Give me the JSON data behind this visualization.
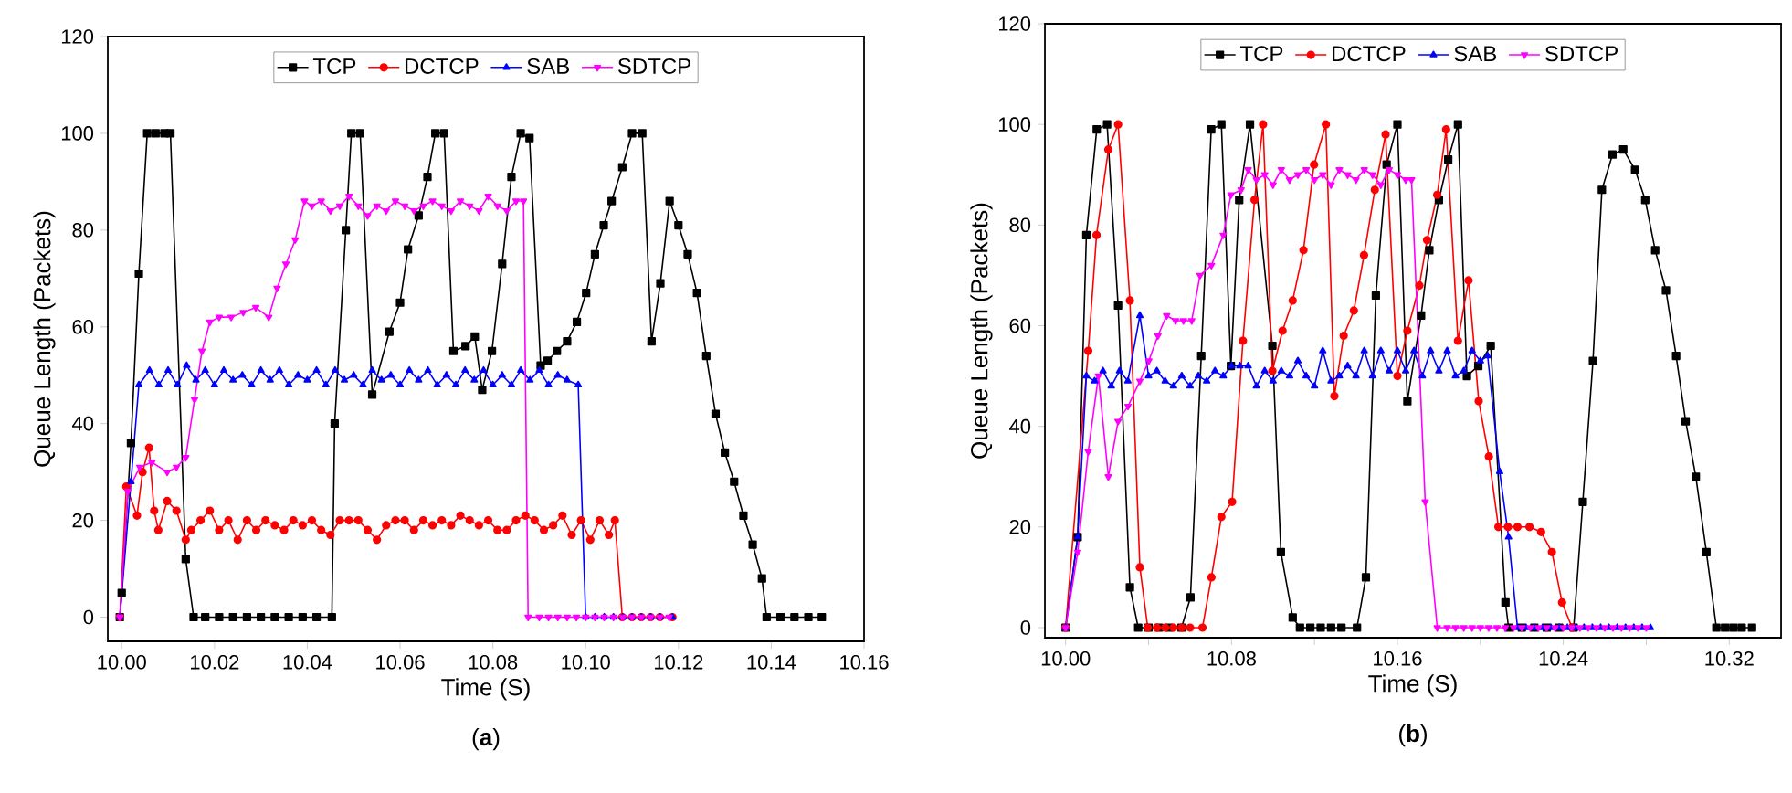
{
  "chart_data": [
    {
      "type": "line",
      "xlabel": "Time (S)",
      "ylabel": "Queue Length (Packets)",
      "annotations": [
        "(**a**)"
      ],
      "xlim": [
        9.997,
        10.16
      ],
      "ylim": [
        -5,
        120
      ],
      "xticks": [
        {
          "value": 10.0,
          "label": "10.00"
        },
        {
          "value": 10.02,
          "label": "10.02"
        },
        {
          "value": 10.04,
          "label": "10.04"
        },
        {
          "value": 10.06,
          "label": "10.06"
        },
        {
          "value": 10.08,
          "label": "10.08"
        },
        {
          "value": 10.1,
          "label": "10.10"
        },
        {
          "value": 10.12,
          "label": "10.12"
        },
        {
          "value": 10.14,
          "label": "10.14"
        },
        {
          "value": 10.16,
          "label": "10.16"
        }
      ],
      "yticks": [
        0,
        20,
        40,
        60,
        80,
        100,
        120
      ],
      "legend": "top",
      "grid": false,
      "series": [
        {
          "name": "TCP",
          "color": "#000000",
          "marker": "square",
          "x": [
            9.9996,
            10.0,
            10.002,
            10.0037,
            10.0055,
            10.0073,
            10.0092,
            10.0105,
            10.0138,
            10.0155,
            10.018,
            10.021,
            10.024,
            10.027,
            10.03,
            10.033,
            10.036,
            10.039,
            10.042,
            10.0453,
            10.0459,
            10.0483,
            10.0495,
            10.0514,
            10.054,
            10.0577,
            10.06,
            10.0617,
            10.064,
            10.0659,
            10.0676,
            10.0695,
            10.0715,
            10.0741,
            10.0761,
            10.0777,
            10.0798,
            10.082,
            10.084,
            10.086,
            10.0879,
            10.0903,
            10.0918,
            10.0938,
            10.096,
            10.0981,
            10.1001,
            10.102,
            10.1039,
            10.1056,
            10.1079,
            10.11,
            10.1122,
            10.1142,
            10.1161,
            10.1181,
            10.12,
            10.122,
            10.124,
            10.126,
            10.128,
            10.13,
            10.132,
            10.134,
            10.136,
            10.138,
            10.139,
            10.142,
            10.145,
            10.148,
            10.1509
          ],
          "values": [
            0,
            5,
            36,
            71,
            100,
            100,
            100,
            100,
            12,
            0,
            0,
            0,
            0,
            0,
            0,
            0,
            0,
            0,
            0,
            0,
            40,
            80,
            100,
            100,
            46,
            59,
            65,
            76,
            83,
            91,
            100,
            100,
            55,
            56,
            58,
            47,
            55,
            73,
            91,
            100,
            99,
            52,
            53,
            55,
            57,
            61,
            67,
            75,
            81,
            86,
            93,
            100,
            100,
            57,
            69,
            86,
            81,
            75,
            67,
            54,
            42,
            34,
            28,
            21,
            15,
            8,
            0,
            0,
            0,
            0,
            0
          ]
        },
        {
          "name": "DCTCP",
          "color": "#ff0000",
          "marker": "circle",
          "x": [
            9.9996,
            10.001,
            10.0033,
            10.0045,
            10.0059,
            10.007,
            10.0079,
            10.0098,
            10.0118,
            10.0138,
            10.015,
            10.017,
            10.019,
            10.021,
            10.023,
            10.025,
            10.027,
            10.029,
            10.031,
            10.033,
            10.035,
            10.037,
            10.039,
            10.041,
            10.043,
            10.045,
            10.047,
            10.049,
            10.051,
            10.053,
            10.055,
            10.057,
            10.059,
            10.061,
            10.063,
            10.065,
            10.067,
            10.069,
            10.071,
            10.073,
            10.075,
            10.077,
            10.079,
            10.081,
            10.083,
            10.085,
            10.087,
            10.089,
            10.091,
            10.093,
            10.095,
            10.097,
            10.099,
            10.101,
            10.103,
            10.105,
            10.1063,
            10.1079,
            10.11,
            10.112,
            10.114,
            10.116,
            10.1187
          ],
          "values": [
            0,
            27,
            21,
            30,
            35,
            22,
            18,
            24,
            22,
            16,
            18,
            20,
            22,
            18,
            20,
            16,
            20,
            18,
            20,
            19,
            18,
            20,
            19,
            20,
            18,
            17,
            20,
            20,
            20,
            18,
            16,
            19,
            20,
            20,
            18,
            20,
            19,
            20,
            19,
            21,
            20,
            19,
            20,
            18,
            18,
            20,
            21,
            20,
            18,
            19,
            21,
            17,
            20,
            16,
            20,
            17,
            20,
            0,
            0,
            0,
            0,
            0,
            0
          ]
        },
        {
          "name": "SAB",
          "color": "#0000ff",
          "marker": "triangle",
          "x": [
            9.9996,
            10.002,
            10.0037,
            10.006,
            10.008,
            10.01,
            10.012,
            10.014,
            10.016,
            10.018,
            10.02,
            10.022,
            10.024,
            10.026,
            10.028,
            10.03,
            10.032,
            10.034,
            10.036,
            10.038,
            10.04,
            10.042,
            10.044,
            10.046,
            10.048,
            10.05,
            10.052,
            10.054,
            10.056,
            10.058,
            10.06,
            10.062,
            10.064,
            10.066,
            10.068,
            10.07,
            10.072,
            10.074,
            10.076,
            10.078,
            10.08,
            10.082,
            10.084,
            10.086,
            10.088,
            10.09,
            10.092,
            10.094,
            10.096,
            10.0984,
            10.1,
            10.102,
            10.104,
            10.106,
            10.108,
            10.11,
            10.112,
            10.114,
            10.116,
            10.1187
          ],
          "values": [
            0,
            28,
            48,
            51,
            48,
            51,
            48,
            52,
            49,
            51,
            48,
            51,
            49,
            50,
            48,
            51,
            49,
            51,
            48,
            50,
            49,
            51,
            48,
            51,
            49,
            50,
            48,
            51,
            49,
            50,
            48,
            51,
            49,
            51,
            48,
            50,
            48,
            51,
            49,
            51,
            48,
            50,
            48,
            51,
            49,
            51,
            48,
            50,
            49,
            48,
            0,
            0,
            0,
            0,
            0,
            0,
            0,
            0,
            0,
            0
          ]
        },
        {
          "name": "SDTCP",
          "color": "#ff00ff",
          "marker": "triangle-down",
          "x": [
            9.9996,
            10.0013,
            10.0039,
            10.0065,
            10.0098,
            10.0118,
            10.0138,
            10.0157,
            10.0173,
            10.019,
            10.021,
            10.0236,
            10.0262,
            10.0289,
            10.0317,
            10.0335,
            10.0354,
            10.0374,
            10.0394,
            10.041,
            10.043,
            10.045,
            10.047,
            10.049,
            10.051,
            10.053,
            10.055,
            10.057,
            10.059,
            10.061,
            10.063,
            10.065,
            10.067,
            10.069,
            10.071,
            10.073,
            10.075,
            10.077,
            10.079,
            10.081,
            10.083,
            10.085,
            10.0866,
            10.0876,
            10.09,
            10.092,
            10.094,
            10.096,
            10.098,
            10.1,
            10.102,
            10.104,
            10.106,
            10.108,
            10.11,
            10.112,
            10.114,
            10.116,
            10.118
          ],
          "values": [
            0,
            26,
            31,
            32,
            30,
            31,
            33,
            45,
            55,
            61,
            62,
            62,
            63,
            64,
            62,
            68,
            73,
            78,
            86,
            85,
            86,
            84,
            85,
            87,
            85,
            83,
            85,
            84,
            86,
            85,
            84,
            85,
            86,
            85,
            84,
            86,
            85,
            84,
            87,
            85,
            84,
            86,
            86,
            0,
            0,
            0,
            0,
            0,
            0,
            0,
            0,
            0,
            0,
            0,
            0,
            0,
            0,
            0,
            0
          ]
        }
      ]
    },
    {
      "type": "line",
      "xlabel": "Time (S)",
      "ylabel": "Queue Length (Packets)",
      "annotations": [
        "(**b**)"
      ],
      "xlim": [
        9.99,
        10.345
      ],
      "ylim": [
        -2,
        120
      ],
      "xticks": [
        {
          "value": 10.0,
          "label": "10.00"
        },
        {
          "value": 10.04,
          "label": null
        },
        {
          "value": 10.08,
          "label": "10.08"
        },
        {
          "value": 10.12,
          "label": null
        },
        {
          "value": 10.16,
          "label": "10.16"
        },
        {
          "value": 10.2,
          "label": null
        },
        {
          "value": 10.24,
          "label": "10.24"
        },
        {
          "value": 10.28,
          "label": null
        },
        {
          "value": 10.32,
          "label": "10.32"
        }
      ],
      "yticks": [
        0,
        20,
        40,
        60,
        80,
        100,
        120
      ],
      "legend": "top",
      "grid": false,
      "series": [
        {
          "name": "TCP",
          "color": "#000000",
          "marker": "square",
          "x": [
            10.0,
            10.0058,
            10.01,
            10.015,
            10.02,
            10.0253,
            10.031,
            10.035,
            10.04,
            10.045,
            10.05,
            10.0559,
            10.0602,
            10.0654,
            10.0702,
            10.0751,
            10.0797,
            10.0837,
            10.0889,
            10.0997,
            10.1038,
            10.1095,
            10.113,
            10.118,
            10.123,
            10.128,
            10.133,
            10.1405,
            10.1448,
            10.1496,
            10.1548,
            10.16,
            10.1648,
            10.1714,
            10.1754,
            10.18,
            10.1845,
            10.1892,
            10.1935,
            10.199,
            10.205,
            10.2121,
            10.2136,
            10.22,
            10.226,
            10.232,
            10.238,
            10.245,
            10.2494,
            10.2543,
            10.2586,
            10.2637,
            10.2689,
            10.2746,
            10.2795,
            10.2843,
            10.2895,
            10.2944,
            10.299,
            10.3039,
            10.309,
            10.3138,
            10.318,
            10.322,
            10.326,
            10.331
          ],
          "values": [
            0,
            18,
            78,
            99,
            100,
            64,
            8,
            0,
            0,
            0,
            0,
            0,
            6,
            54,
            99,
            100,
            52,
            85,
            100,
            56,
            15,
            2,
            0,
            0,
            0,
            0,
            0,
            0,
            10,
            66,
            92,
            100,
            45,
            62,
            75,
            85,
            93,
            100,
            50,
            52,
            56,
            5,
            0,
            0,
            0,
            0,
            0,
            0,
            25,
            53,
            87,
            94,
            95,
            91,
            85,
            75,
            67,
            54,
            41,
            30,
            15,
            0,
            0,
            0,
            0,
            0
          ]
        },
        {
          "name": "DCTCP",
          "color": "#ff0000",
          "marker": "circle",
          "x": [
            10.0,
            10.0109,
            10.0149,
            10.0206,
            10.0253,
            10.031,
            10.0358,
            10.0396,
            10.044,
            10.048,
            10.052,
            10.056,
            10.06,
            10.066,
            10.0703,
            10.0751,
            10.0803,
            10.0855,
            10.0911,
            10.0952,
            10.0997,
            10.1046,
            10.1095,
            10.1147,
            10.1198,
            10.1255,
            10.1296,
            10.1341,
            10.139,
            10.1439,
            10.1491,
            10.1543,
            10.16,
            10.1648,
            10.1706,
            10.1743,
            10.1792,
            10.1835,
            10.1892,
            10.1943,
            10.1992,
            10.2041,
            10.2087,
            10.2133,
            10.2179,
            10.2237,
            10.2293,
            10.2345,
            10.2394,
            10.2442
          ],
          "values": [
            0,
            55,
            78,
            95,
            100,
            65,
            12,
            0,
            0,
            0,
            0,
            0,
            0,
            0,
            10,
            22,
            25,
            57,
            85,
            100,
            51,
            59,
            65,
            75,
            92,
            100,
            46,
            58,
            63,
            74,
            87,
            98,
            50,
            59,
            68,
            77,
            86,
            99,
            57,
            69,
            45,
            34,
            20,
            20,
            20,
            20,
            19,
            15,
            5,
            0
          ]
        },
        {
          "name": "SAB",
          "color": "#0000ff",
          "marker": "triangle",
          "x": [
            10.0,
            10.0058,
            10.01,
            10.014,
            10.018,
            10.022,
            10.026,
            10.03,
            10.0358,
            10.04,
            10.044,
            10.048,
            10.052,
            10.056,
            10.06,
            10.064,
            10.068,
            10.072,
            10.076,
            10.08,
            10.084,
            10.088,
            10.092,
            10.096,
            10.1,
            10.104,
            10.108,
            10.112,
            10.116,
            10.12,
            10.124,
            10.128,
            10.132,
            10.136,
            10.14,
            10.144,
            10.148,
            10.152,
            10.156,
            10.16,
            10.164,
            10.168,
            10.172,
            10.176,
            10.18,
            10.184,
            10.188,
            10.192,
            10.196,
            10.2,
            10.2035,
            10.2093,
            10.2136,
            10.2179,
            10.222,
            10.226,
            10.23,
            10.234,
            10.238,
            10.242,
            10.246,
            10.25,
            10.254,
            10.258,
            10.262,
            10.266,
            10.27,
            10.274,
            10.278,
            10.282
          ],
          "values": [
            0,
            18,
            50,
            49,
            51,
            48,
            51,
            49,
            62,
            50,
            51,
            49,
            48,
            50,
            48,
            50,
            49,
            51,
            50,
            52,
            52,
            52,
            48,
            51,
            49,
            51,
            50,
            53,
            50,
            48,
            55,
            49,
            50,
            52,
            50,
            55,
            50,
            55,
            51,
            55,
            51,
            55,
            50,
            55,
            51,
            55,
            50,
            51,
            55,
            53,
            54,
            31,
            18,
            0,
            0,
            0,
            0,
            0,
            0,
            0,
            0,
            0,
            0,
            0,
            0,
            0,
            0,
            0,
            0,
            0
          ]
        },
        {
          "name": "SDTCP",
          "color": "#ff00ff",
          "marker": "triangle-down",
          "x": [
            10.0,
            10.0058,
            10.0109,
            10.0158,
            10.0206,
            10.0253,
            10.0301,
            10.0358,
            10.0401,
            10.0445,
            10.0487,
            10.053,
            10.0568,
            10.0608,
            10.0648,
            10.0703,
            10.076,
            10.0797,
            10.0846,
            10.088,
            10.092,
            10.096,
            10.1,
            10.104,
            10.108,
            10.112,
            10.116,
            10.12,
            10.124,
            10.128,
            10.132,
            10.136,
            10.14,
            10.144,
            10.148,
            10.152,
            10.156,
            10.16,
            10.164,
            10.1668,
            10.1734,
            10.1792,
            10.184,
            10.188,
            10.192,
            10.196,
            10.2,
            10.204,
            10.208,
            10.212,
            10.216,
            10.22,
            10.224,
            10.228,
            10.232,
            10.236,
            10.24,
            10.244,
            10.248,
            10.252,
            10.256,
            10.26,
            10.264,
            10.268,
            10.272,
            10.276,
            10.28
          ],
          "values": [
            0,
            15,
            35,
            50,
            30,
            41,
            44,
            49,
            53,
            58,
            62,
            61,
            61,
            61,
            70,
            72,
            78,
            86,
            87,
            91,
            89,
            90,
            88,
            91,
            89,
            90,
            91,
            89,
            90,
            88,
            91,
            90,
            89,
            91,
            90,
            88,
            91,
            90,
            89,
            89,
            25,
            0,
            0,
            0,
            0,
            0,
            0,
            0,
            0,
            0,
            0,
            0,
            0,
            0,
            0,
            0,
            0,
            0,
            0,
            0,
            0,
            0,
            0,
            0,
            0,
            0,
            0
          ]
        }
      ]
    }
  ]
}
